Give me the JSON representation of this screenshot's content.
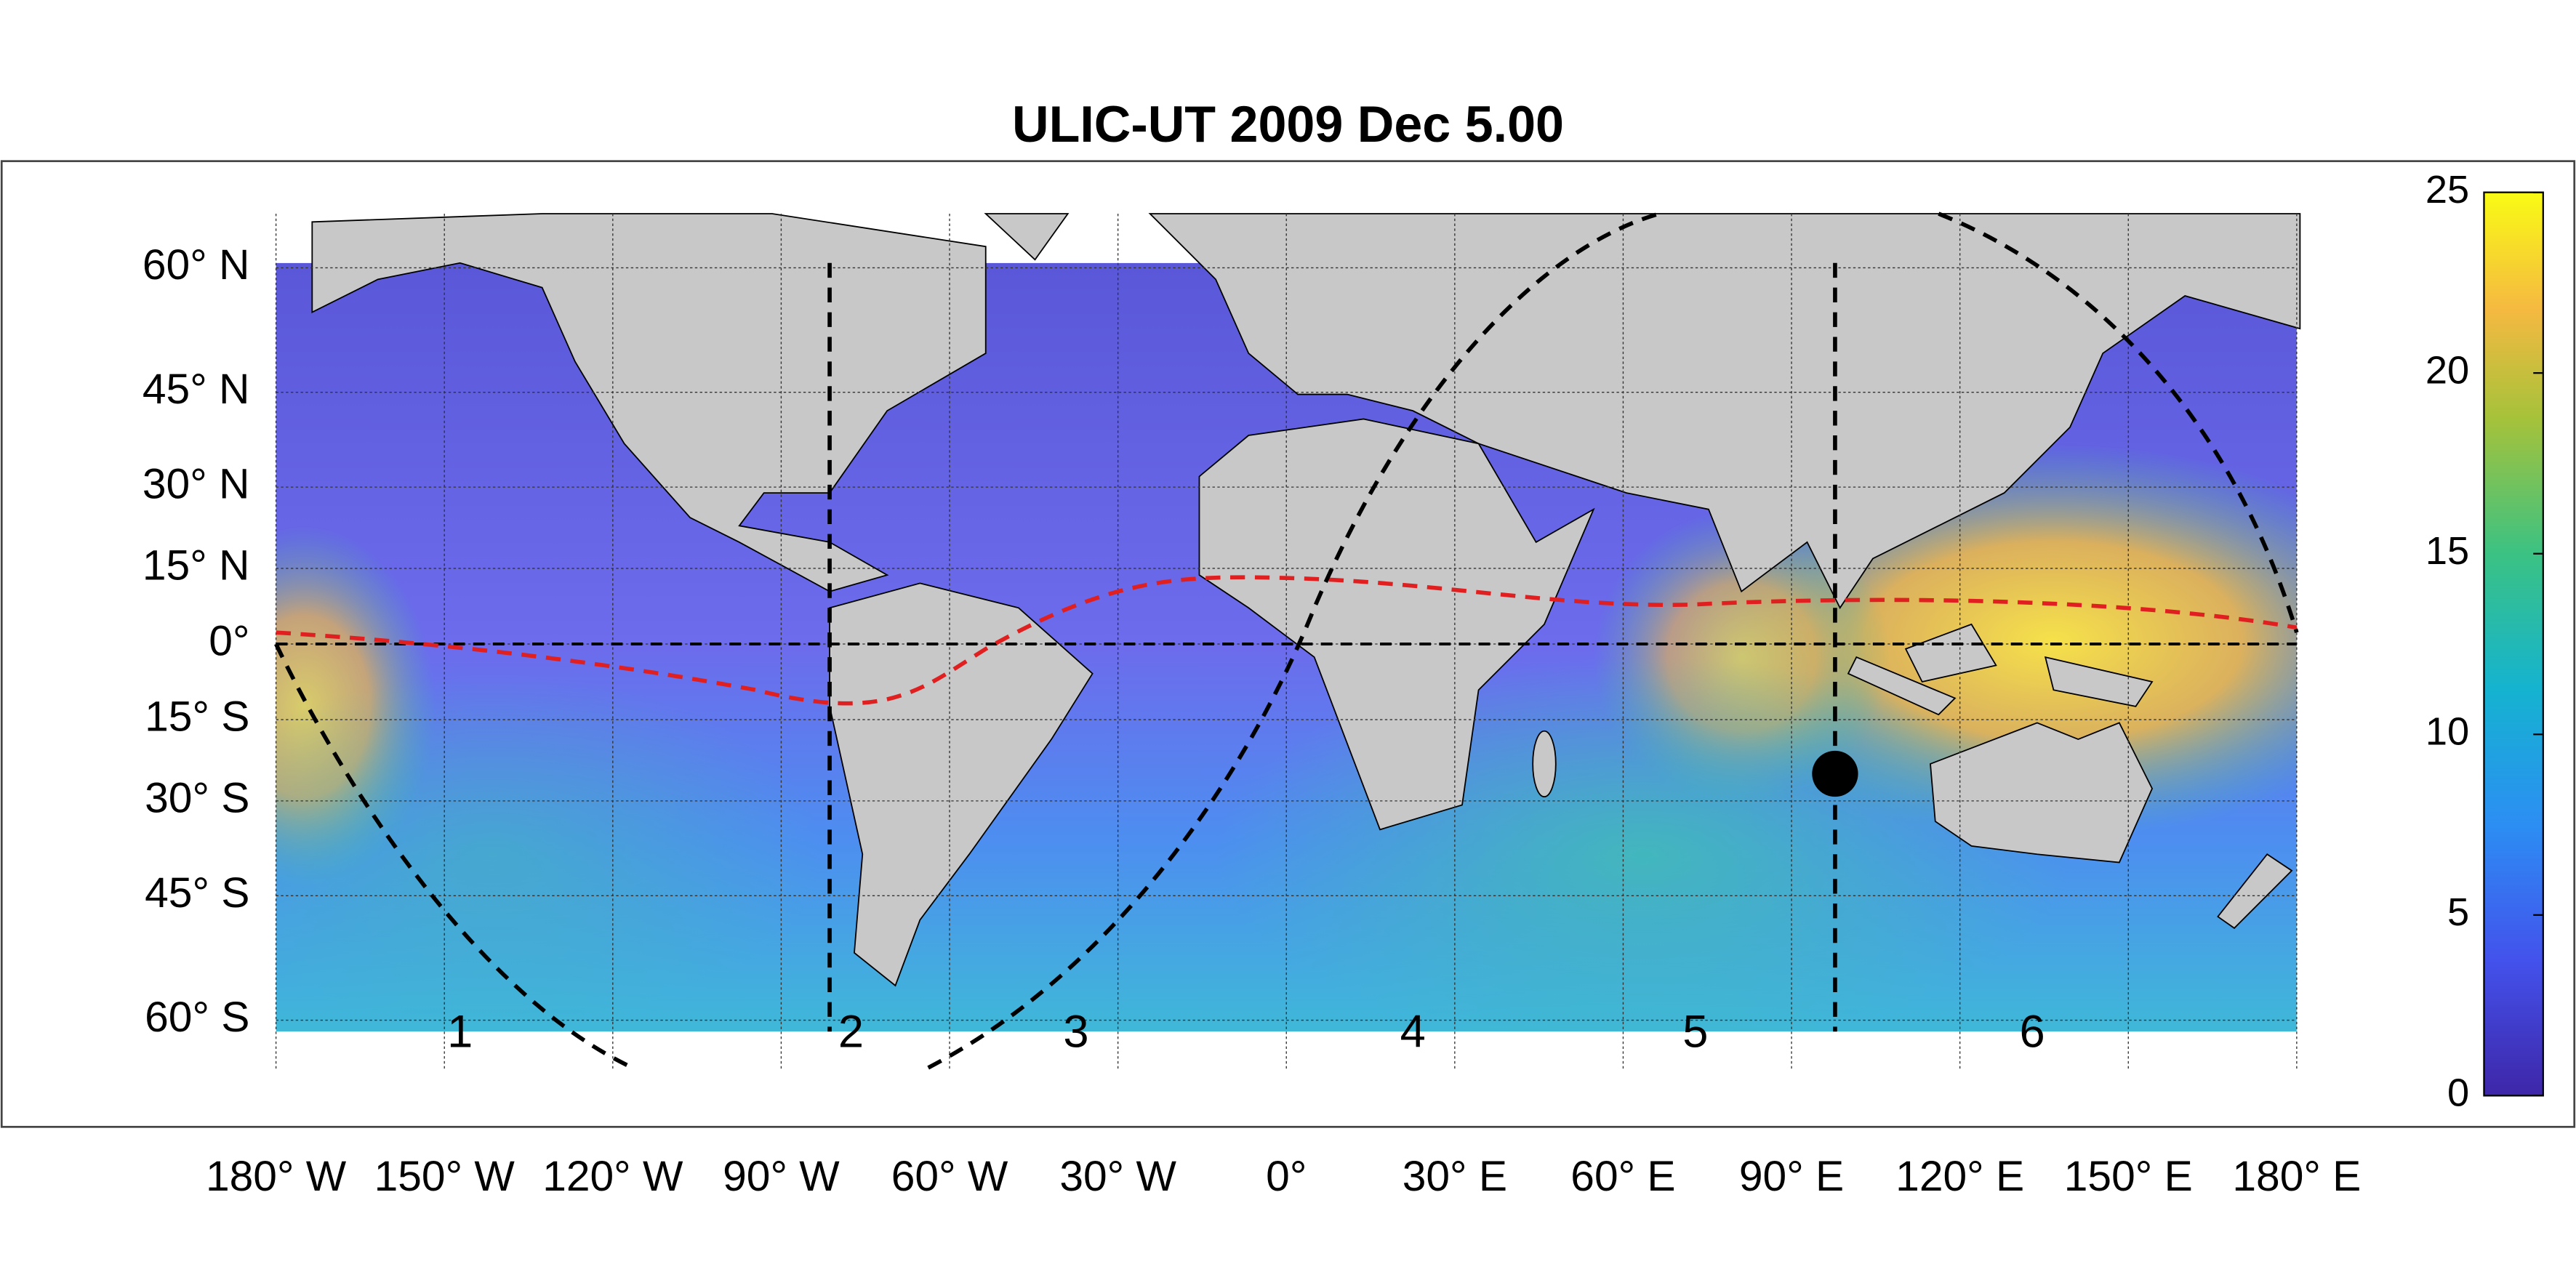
{
  "chart_data": {
    "type": "map",
    "title": "ULIC-UT 2009 Dec  5.00",
    "xlim": [
      -180,
      180
    ],
    "ylim": [
      -65,
      65
    ],
    "xticks": [
      {
        "value": -180,
        "label": "180° W"
      },
      {
        "value": -150,
        "label": "150° W"
      },
      {
        "value": -120,
        "label": "120° W"
      },
      {
        "value": -90,
        "label": "90° W"
      },
      {
        "value": -60,
        "label": "60° W"
      },
      {
        "value": -30,
        "label": "30° W"
      },
      {
        "value": 0,
        "label": "0°"
      },
      {
        "value": 30,
        "label": "30° E"
      },
      {
        "value": 60,
        "label": "60° E"
      },
      {
        "value": 90,
        "label": "90° E"
      },
      {
        "value": 120,
        "label": "120° E"
      },
      {
        "value": 150,
        "label": "150° E"
      },
      {
        "value": 180,
        "label": "180° E"
      }
    ],
    "yticks": [
      {
        "value": 60,
        "label": "60° N"
      },
      {
        "value": 45,
        "label": "45° N"
      },
      {
        "value": 30,
        "label": "30° N"
      },
      {
        "value": 15,
        "label": "15° N"
      },
      {
        "value": 0,
        "label": "0°"
      },
      {
        "value": -15,
        "label": "15° S"
      },
      {
        "value": -30,
        "label": "30° S"
      },
      {
        "value": -45,
        "label": "45° S"
      },
      {
        "value": -60,
        "label": "60° S"
      }
    ],
    "grid": true,
    "colorbar": {
      "clim": [
        0,
        25
      ],
      "ticks": [
        0,
        5,
        10,
        15,
        20,
        25
      ]
    },
    "region_labels": [
      "1",
      "2",
      "3",
      "4",
      "5",
      "6"
    ]
  }
}
